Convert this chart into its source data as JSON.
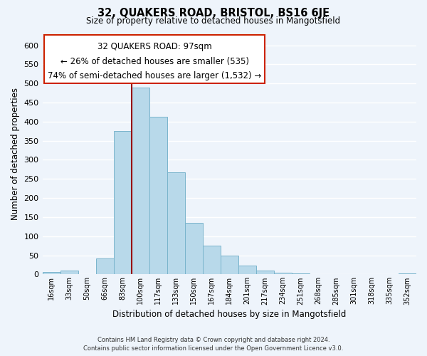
{
  "title": "32, QUAKERS ROAD, BRISTOL, BS16 6JE",
  "subtitle": "Size of property relative to detached houses in Mangotsfield",
  "xlabel": "Distribution of detached houses by size in Mangotsfield",
  "ylabel": "Number of detached properties",
  "bar_color": "#b8d9ea",
  "bar_edge_color": "#7ab4cc",
  "categories": [
    "16sqm",
    "33sqm",
    "50sqm",
    "66sqm",
    "83sqm",
    "100sqm",
    "117sqm",
    "133sqm",
    "150sqm",
    "167sqm",
    "184sqm",
    "201sqm",
    "217sqm",
    "234sqm",
    "251sqm",
    "268sqm",
    "285sqm",
    "301sqm",
    "318sqm",
    "335sqm",
    "352sqm"
  ],
  "values": [
    7,
    10,
    0,
    42,
    375,
    490,
    412,
    268,
    135,
    75,
    50,
    24,
    10,
    5,
    2,
    1,
    0,
    1,
    0,
    0,
    3
  ],
  "ylim": [
    0,
    630
  ],
  "yticks": [
    0,
    50,
    100,
    150,
    200,
    250,
    300,
    350,
    400,
    450,
    500,
    550,
    600
  ],
  "property_line_label": "32 QUAKERS ROAD: 97sqm",
  "annotation_line1": "← 26% of detached houses are smaller (535)",
  "annotation_line2": "74% of semi-detached houses are larger (1,532) →",
  "footnote1": "Contains HM Land Registry data © Crown copyright and database right 2024.",
  "footnote2": "Contains public sector information licensed under the Open Government Licence v3.0.",
  "bg_color": "#eef4fb",
  "grid_color": "#ffffff",
  "box_edge_color": "#cc2200"
}
